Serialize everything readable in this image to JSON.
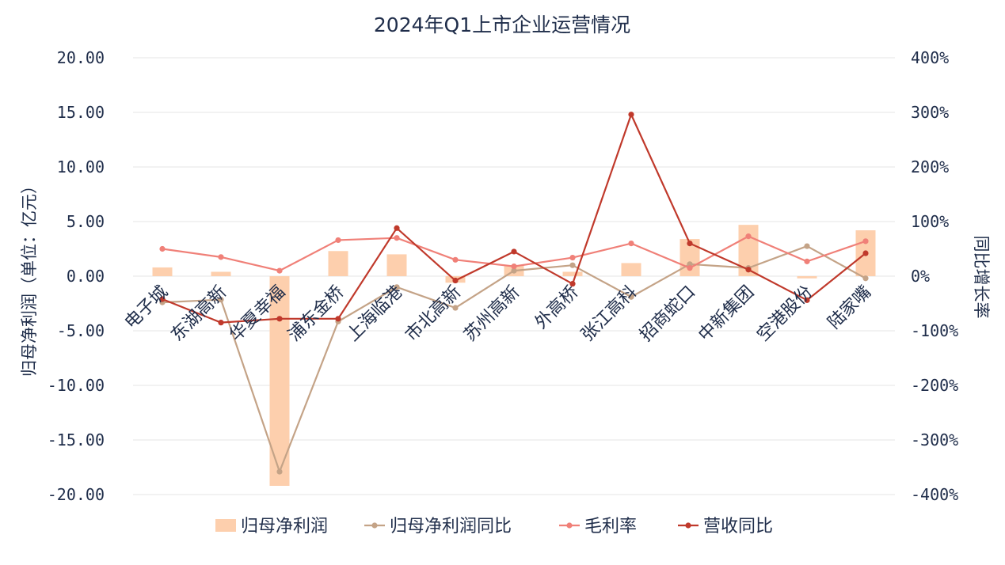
{
  "chart_data": {
    "type": "bar+line",
    "title": "2024年Q1上市企业运营情况",
    "categories": [
      "电子城",
      "东湖高新",
      "华夏幸福",
      "浦东金桥",
      "上海临港",
      "市北高新",
      "苏州高新",
      "外高桥",
      "张江高科",
      "招商蛇口",
      "中新集团",
      "空港股份",
      "陆家嘴"
    ],
    "y_left": {
      "label": "归母净利润（单位：亿元）",
      "ylim": [
        -20,
        20
      ],
      "ticks": [
        "20.00",
        "15.00",
        "10.00",
        "5.00",
        "0.00",
        "-5.00",
        "-10.00",
        "-15.00",
        "-20.00"
      ]
    },
    "y_right": {
      "label": "同比增长率",
      "ylim": [
        -400,
        400
      ],
      "ticks": [
        "400%",
        "300%",
        "200%",
        "100%",
        "0%",
        "-100%",
        "-200%",
        "-300%",
        "-400%"
      ]
    },
    "grid": true,
    "legend_position": "bottom",
    "series": [
      {
        "name": "归母净利润",
        "type": "bar",
        "axis": "left",
        "color": "#fdcfad",
        "values": [
          0.8,
          0.4,
          -19.2,
          2.3,
          2.0,
          -0.6,
          1.0,
          0.4,
          1.2,
          3.4,
          4.7,
          -0.2,
          4.2
        ]
      },
      {
        "name": "归母净利润同比",
        "type": "line",
        "axis": "right",
        "color": "#c4a387",
        "values": [
          -48,
          -43,
          -358,
          -83,
          -20,
          -58,
          10,
          20,
          -38,
          22,
          15,
          55,
          -4
        ]
      },
      {
        "name": "毛利率",
        "type": "line",
        "axis": "right",
        "color": "#f08078",
        "values": [
          50,
          35,
          10,
          66,
          70,
          30,
          18,
          34,
          60,
          15,
          73,
          27,
          64
        ]
      },
      {
        "name": "营收同比",
        "type": "line",
        "axis": "right",
        "color": "#c0392b",
        "values": [
          -42,
          -85,
          -78,
          -78,
          88,
          -8,
          45,
          -14,
          296,
          60,
          12,
          -44,
          42
        ]
      }
    ]
  }
}
